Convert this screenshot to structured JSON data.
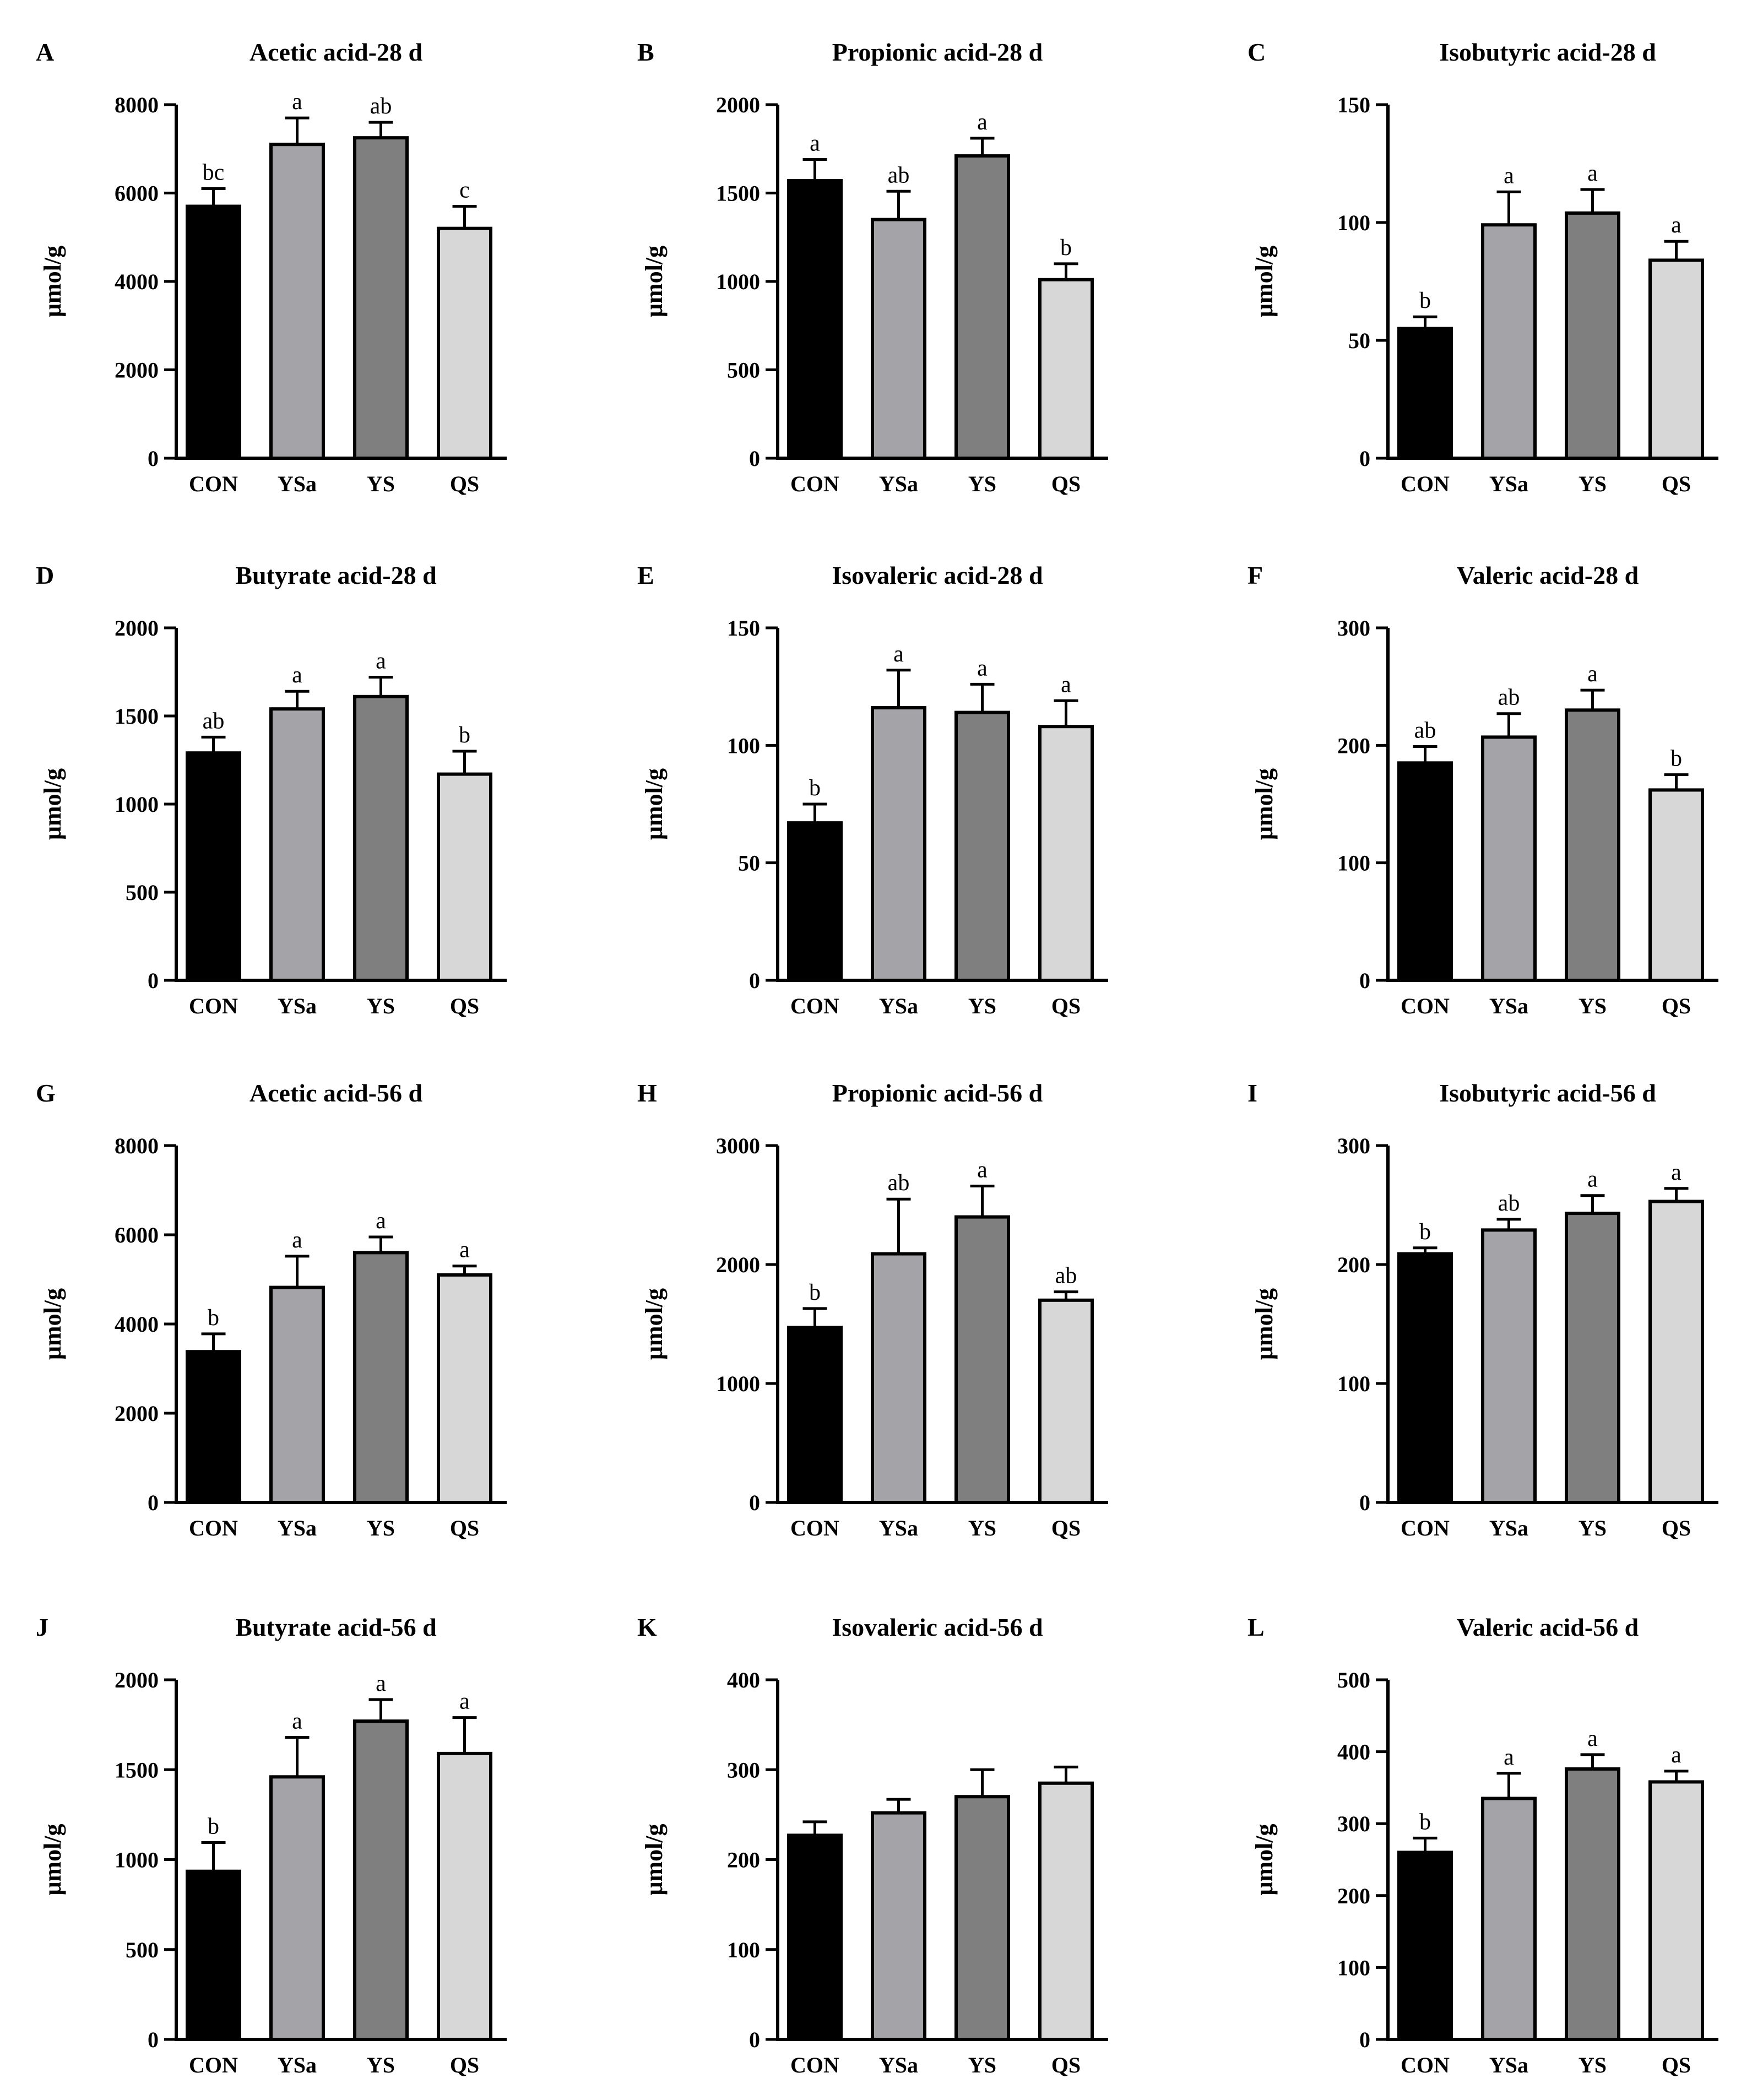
{
  "figure": {
    "categories": [
      "CON",
      "YSa",
      "YS",
      "QS"
    ],
    "colors": {
      "CON": "#000000",
      "YSa": "#a4a4a8",
      "YS": "#7f7f7f",
      "QS": "#d7d7d7",
      "axis": "#000000",
      "bar_outline": "#000000"
    }
  },
  "chart_data": [
    {
      "type": "bar",
      "panel": "A",
      "title": "Acetic acid-28 d",
      "ylabel": "μmol/g",
      "ylim": [
        0,
        8000
      ],
      "yticks": [
        0,
        2000,
        4000,
        6000,
        8000
      ],
      "categories": [
        "CON",
        "YSa",
        "YS",
        "QS"
      ],
      "values": [
        5700,
        7100,
        7250,
        5200
      ],
      "errors": [
        400,
        600,
        350,
        500
      ],
      "significance": [
        "bc",
        "a",
        "ab",
        "c"
      ]
    },
    {
      "type": "bar",
      "panel": "B",
      "title": "Propionic acid-28 d",
      "ylabel": "μmol/g",
      "ylim": [
        0,
        2000
      ],
      "yticks": [
        0,
        500,
        1000,
        1500,
        2000
      ],
      "categories": [
        "CON",
        "YSa",
        "YS",
        "QS"
      ],
      "values": [
        1570,
        1350,
        1710,
        1010
      ],
      "errors": [
        120,
        160,
        100,
        90
      ],
      "significance": [
        "a",
        "ab",
        "a",
        "b"
      ]
    },
    {
      "type": "bar",
      "panel": "C",
      "title": "Isobutyric acid-28 d",
      "ylabel": "μmol/g",
      "ylim": [
        0,
        150
      ],
      "yticks": [
        0,
        50,
        100,
        150
      ],
      "categories": [
        "CON",
        "YSa",
        "YS",
        "QS"
      ],
      "values": [
        55,
        99,
        104,
        84
      ],
      "errors": [
        5,
        14,
        10,
        8
      ],
      "significance": [
        "b",
        "a",
        "a",
        "a"
      ]
    },
    {
      "type": "bar",
      "panel": "D",
      "title": "Butyrate acid-28 d",
      "ylabel": "μmol/g",
      "ylim": [
        0,
        2000
      ],
      "yticks": [
        0,
        500,
        1000,
        1500,
        2000
      ],
      "categories": [
        "CON",
        "YSa",
        "YS",
        "QS"
      ],
      "values": [
        1290,
        1540,
        1610,
        1170
      ],
      "errors": [
        90,
        100,
        110,
        130
      ],
      "significance": [
        "ab",
        "a",
        "a",
        "b"
      ]
    },
    {
      "type": "bar",
      "panel": "E",
      "title": "Isovaleric acid-28 d",
      "ylabel": "μmol/g",
      "ylim": [
        0,
        150
      ],
      "yticks": [
        0,
        50,
        100,
        150
      ],
      "categories": [
        "CON",
        "YSa",
        "YS",
        "QS"
      ],
      "values": [
        67,
        116,
        114,
        108
      ],
      "errors": [
        8,
        16,
        12,
        11
      ],
      "significance": [
        "b",
        "a",
        "a",
        "a"
      ]
    },
    {
      "type": "bar",
      "panel": "F",
      "title": "Valeric acid-28 d",
      "ylabel": "μmol/g",
      "ylim": [
        0,
        300
      ],
      "yticks": [
        0,
        100,
        200,
        300
      ],
      "categories": [
        "CON",
        "YSa",
        "YS",
        "QS"
      ],
      "values": [
        185,
        207,
        230,
        162
      ],
      "errors": [
        14,
        20,
        17,
        13
      ],
      "significance": [
        "ab",
        "ab",
        "a",
        "b"
      ]
    },
    {
      "type": "bar",
      "panel": "G",
      "title": "Acetic acid-56 d",
      "ylabel": "μmol/g",
      "ylim": [
        0,
        8000
      ],
      "yticks": [
        0,
        2000,
        4000,
        6000,
        8000
      ],
      "categories": [
        "CON",
        "YSa",
        "YS",
        "QS"
      ],
      "values": [
        3380,
        4820,
        5600,
        5100
      ],
      "errors": [
        400,
        700,
        350,
        200
      ],
      "significance": [
        "b",
        "a",
        "a",
        "a"
      ]
    },
    {
      "type": "bar",
      "panel": "H",
      "title": "Propionic acid-56 d",
      "ylabel": "μmol/g",
      "ylim": [
        0,
        3000
      ],
      "yticks": [
        0,
        1000,
        2000,
        3000
      ],
      "categories": [
        "CON",
        "YSa",
        "YS",
        "QS"
      ],
      "values": [
        1470,
        2090,
        2400,
        1700
      ],
      "errors": [
        160,
        460,
        260,
        70
      ],
      "significance": [
        "b",
        "ab",
        "a",
        "ab"
      ]
    },
    {
      "type": "bar",
      "panel": "I",
      "title": "Isobutyric acid-56 d",
      "ylabel": "μmol/g",
      "ylim": [
        0,
        300
      ],
      "yticks": [
        0,
        100,
        200,
        300
      ],
      "categories": [
        "CON",
        "YSa",
        "YS",
        "QS"
      ],
      "values": [
        209,
        229,
        243,
        253
      ],
      "errors": [
        5,
        9,
        15,
        11
      ],
      "significance": [
        "b",
        "ab",
        "a",
        "a"
      ]
    },
    {
      "type": "bar",
      "panel": "J",
      "title": "Butyrate acid-56 d",
      "ylabel": "μmol/g",
      "ylim": [
        0,
        2000
      ],
      "yticks": [
        0,
        500,
        1000,
        1500,
        2000
      ],
      "categories": [
        "CON",
        "YSa",
        "YS",
        "QS"
      ],
      "values": [
        935,
        1460,
        1770,
        1590
      ],
      "errors": [
        160,
        220,
        120,
        200
      ],
      "significance": [
        "b",
        "a",
        "a",
        "a"
      ]
    },
    {
      "type": "bar",
      "panel": "K",
      "title": "Isovaleric acid-56 d",
      "ylabel": "μmol/g",
      "ylim": [
        0,
        400
      ],
      "yticks": [
        0,
        100,
        200,
        300,
        400
      ],
      "categories": [
        "CON",
        "YSa",
        "YS",
        "QS"
      ],
      "values": [
        227,
        252,
        270,
        285
      ],
      "errors": [
        15,
        15,
        30,
        18
      ],
      "significance": [
        "",
        "",
        "",
        ""
      ]
    },
    {
      "type": "bar",
      "panel": "L",
      "title": "Valeric acid-56 d",
      "ylabel": "μmol/g",
      "ylim": [
        0,
        500
      ],
      "yticks": [
        0,
        100,
        200,
        300,
        400,
        500
      ],
      "categories": [
        "CON",
        "YSa",
        "YS",
        "QS"
      ],
      "values": [
        260,
        335,
        376,
        358
      ],
      "errors": [
        20,
        35,
        20,
        15
      ],
      "significance": [
        "b",
        "a",
        "a",
        "a"
      ]
    }
  ]
}
